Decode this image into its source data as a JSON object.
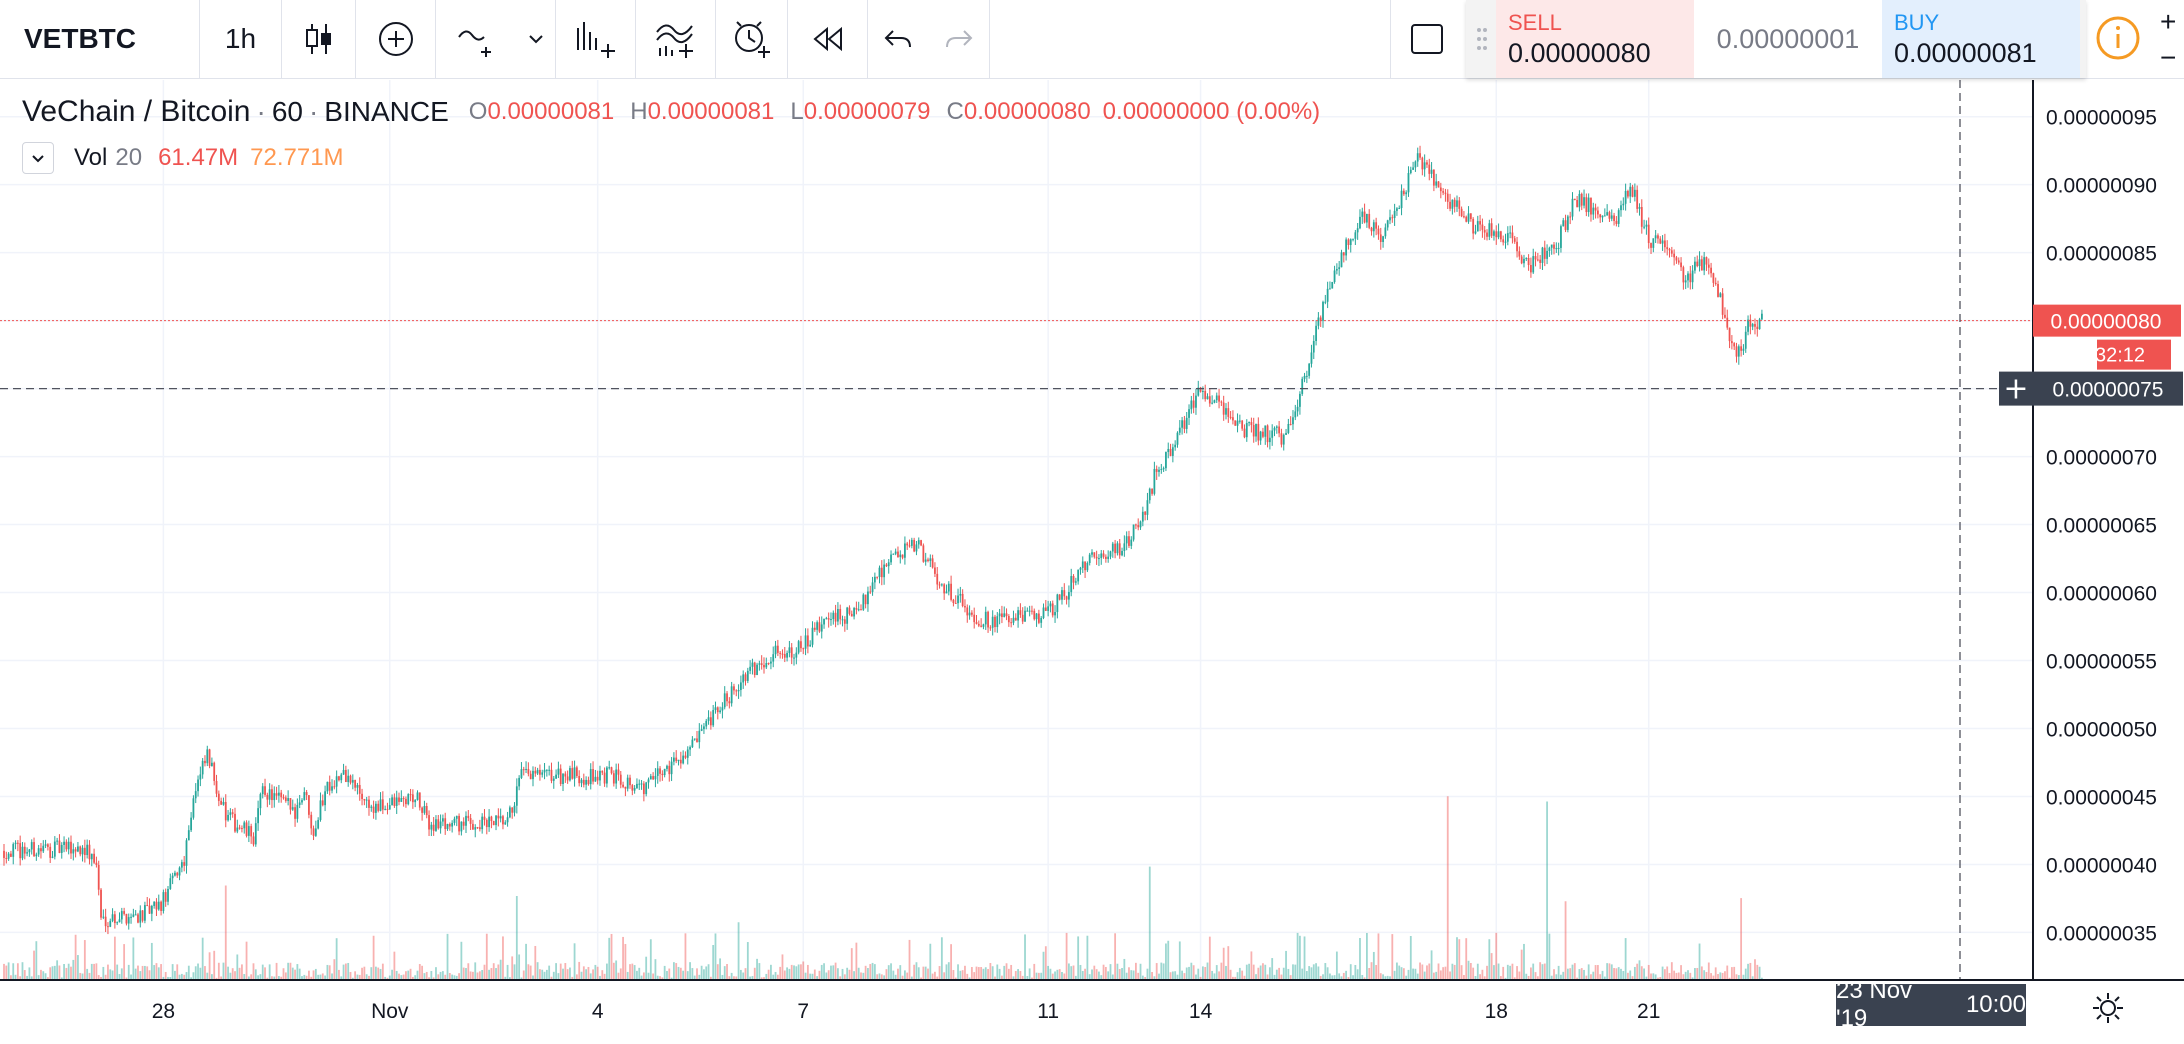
{
  "toolbar": {
    "symbol": "VETBTC",
    "interval": "1h",
    "icons": [
      "candles-icon",
      "indicators-icon",
      "drawing-icon",
      "chevron-down-icon",
      "compare-icon",
      "templates-icon",
      "alert-icon",
      "replay-icon",
      "undo-icon",
      "redo-icon",
      "window-icon"
    ]
  },
  "trade": {
    "sell_label": "SELL",
    "sell_value": "0.00000080",
    "spread": "0.00000001",
    "buy_label": "BUY",
    "buy_value": "0.00000081",
    "info_icon": "info-icon"
  },
  "legend": {
    "title": "VeChain / Bitcoin",
    "interval": "60",
    "exchange": "BINANCE",
    "o_label": "O",
    "o_value": "0.00000081",
    "h_label": "H",
    "h_value": "0.00000081",
    "l_label": "L",
    "l_value": "0.00000079",
    "c_label": "C",
    "c_value": "0.00000080",
    "change": "0.00000000 (0.00%)",
    "vol_label": "Vol",
    "vol_len": "20",
    "vol_value": "61.47M",
    "vol_ma": "72.771M"
  },
  "colors": {
    "up": "#26a69a",
    "down": "#ef5350",
    "grid": "#f0f3fa",
    "axis": "#131722"
  },
  "chart_data": {
    "type": "candlestick",
    "symbol": "VETBTC",
    "resolution": "60",
    "y_ticks": [
      "0.00000035",
      "0.00000040",
      "0.00000045",
      "0.00000050",
      "0.00000055",
      "0.00000060",
      "0.00000065",
      "0.00000070",
      "0.00000075",
      "0.00000080",
      "0.00000085",
      "0.00000090",
      "0.00000095"
    ],
    "x_ticks": [
      "28",
      "Nov",
      "4",
      "7",
      "11",
      "14",
      "18",
      "21"
    ],
    "ylim": [
      3.15e-07,
      9.77e-07
    ],
    "last_price": "0.00000080",
    "countdown": "32:12",
    "crosshair_price": "0.00000075",
    "crosshair_time": "23 Nov '19",
    "crosshair_clock": "10:00",
    "price_path": [
      [
        0,
        41.0
      ],
      [
        35,
        41.2
      ],
      [
        40,
        40.0
      ],
      [
        42,
        36.0
      ],
      [
        62,
        36.4
      ],
      [
        68,
        37.0
      ],
      [
        78,
        40.5
      ],
      [
        82,
        45.0
      ],
      [
        88,
        48.0
      ],
      [
        96,
        43.5
      ],
      [
        108,
        42.0
      ],
      [
        112,
        45.5
      ],
      [
        126,
        44.0
      ],
      [
        130,
        45.5
      ],
      [
        134,
        42.5
      ],
      [
        140,
        46.0
      ],
      [
        148,
        46.5
      ],
      [
        160,
        44.0
      ],
      [
        178,
        45.0
      ],
      [
        184,
        43.0
      ],
      [
        218,
        43.0
      ],
      [
        224,
        46.5
      ],
      [
        266,
        46.5
      ],
      [
        276,
        45.5
      ],
      [
        300,
        49.0
      ],
      [
        316,
        53.0
      ],
      [
        332,
        55.5
      ],
      [
        346,
        56.0
      ],
      [
        356,
        58.0
      ],
      [
        370,
        58.5
      ],
      [
        376,
        61.0
      ],
      [
        384,
        62.5
      ],
      [
        396,
        63.5
      ],
      [
        404,
        61.0
      ],
      [
        410,
        60.0
      ],
      [
        422,
        58.0
      ],
      [
        436,
        58.0
      ],
      [
        452,
        58.5
      ],
      [
        460,
        60.0
      ],
      [
        466,
        62.0
      ],
      [
        486,
        63.5
      ],
      [
        494,
        66.0
      ],
      [
        498,
        68.5
      ],
      [
        508,
        71.5
      ],
      [
        518,
        75.0
      ],
      [
        526,
        74.0
      ],
      [
        536,
        72.0
      ],
      [
        554,
        71.5
      ],
      [
        564,
        76.0
      ],
      [
        572,
        82.0
      ],
      [
        588,
        88.0
      ],
      [
        596,
        86.0
      ],
      [
        604,
        88.5
      ],
      [
        612,
        92.0
      ],
      [
        622,
        89.5
      ],
      [
        636,
        87.0
      ],
      [
        652,
        86.0
      ],
      [
        660,
        84.0
      ],
      [
        672,
        85.5
      ],
      [
        680,
        89.0
      ],
      [
        698,
        87.5
      ],
      [
        704,
        90.0
      ],
      [
        712,
        86.0
      ],
      [
        720,
        85.5
      ],
      [
        728,
        83.0
      ],
      [
        736,
        84.5
      ],
      [
        744,
        81.0
      ],
      [
        750,
        77.0
      ],
      [
        756,
        80.0
      ]
    ],
    "volume_spikes": [
      [
        96,
        9.0
      ],
      [
        222,
        8.0
      ],
      [
        318,
        5.5
      ],
      [
        496,
        10.8
      ],
      [
        625,
        17.5
      ],
      [
        668,
        17.0
      ],
      [
        676,
        7.5
      ],
      [
        752,
        7.8
      ]
    ],
    "volume_max": 20
  }
}
